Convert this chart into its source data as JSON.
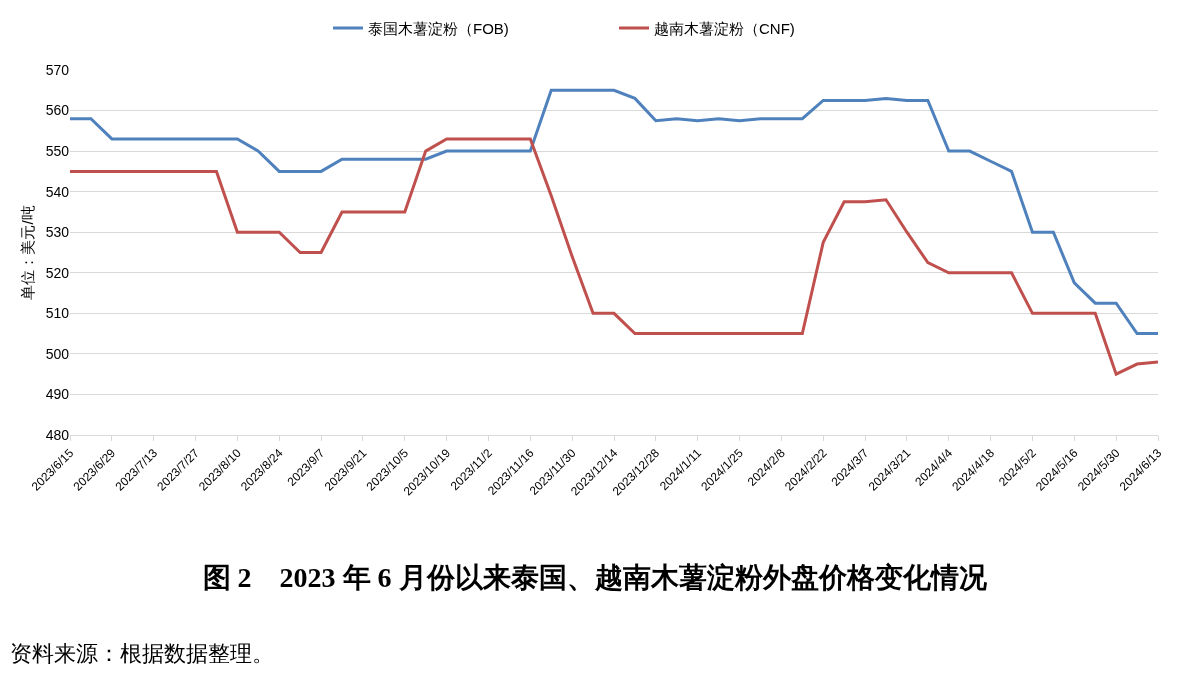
{
  "chart_data": {
    "type": "line",
    "title": "图 2　2023 年 6 月份以来泰国、越南木薯淀粉外盘价格变化情况",
    "ylabel": "单位：美元/吨",
    "annotations": [
      "资料来源：根据数据整理。"
    ],
    "categories": [
      "2023/6/15",
      null,
      "2023/6/29",
      null,
      "2023/7/13",
      null,
      "2023/7/27",
      null,
      "2023/8/10",
      null,
      "2023/8/24",
      null,
      "2023/9/7",
      null,
      "2023/9/21",
      null,
      "2023/10/5",
      null,
      "2023/10/19",
      null,
      "2023/11/2",
      null,
      "2023/11/16",
      null,
      "2023/11/30",
      null,
      "2023/12/14",
      null,
      "2023/12/28",
      null,
      "2024/1/11",
      null,
      "2024/1/25",
      null,
      "2024/2/8",
      null,
      "2024/2/22",
      null,
      "2024/3/7",
      null,
      "2024/3/21",
      null,
      "2024/4/4",
      null,
      "2024/4/18",
      null,
      "2024/5/2",
      null,
      "2024/5/16",
      null,
      "2024/5/30",
      null,
      "2024/6/13"
    ],
    "series": [
      {
        "name": "泰国木薯淀粉（FOB)",
        "color": "#4f81bd",
        "values": [
          558,
          558,
          553,
          553,
          553,
          553,
          553,
          553,
          553,
          550,
          545,
          545,
          545,
          548,
          548,
          548,
          548,
          548,
          550,
          550,
          550,
          550,
          550,
          565,
          565,
          565,
          565,
          563,
          557.5,
          558,
          557.5,
          558,
          557.5,
          558,
          558,
          558,
          562.5,
          562.5,
          562.5,
          563,
          562.5,
          562.5,
          550,
          550,
          547.5,
          545,
          530,
          530,
          517.5,
          512.5,
          512.5,
          505,
          505
        ]
      },
      {
        "name": "越南木薯淀粉（CNF)",
        "color": "#c0504d",
        "values": [
          545,
          545,
          545,
          545,
          545,
          545,
          545,
          545,
          530,
          530,
          530,
          525,
          525,
          535,
          535,
          535,
          535,
          550,
          553,
          553,
          553,
          553,
          553,
          539,
          524,
          510,
          510,
          505,
          505,
          505,
          505,
          505,
          505,
          505,
          505,
          505,
          527.5,
          537.5,
          537.5,
          538,
          530,
          522.5,
          520,
          520,
          520,
          520,
          510,
          510,
          510,
          510,
          495,
          497.5,
          498
        ]
      }
    ],
    "ylim": [
      480,
      570
    ],
    "yticks": [
      480,
      490,
      500,
      510,
      520,
      530,
      540,
      550,
      560,
      570
    ],
    "grid": "y",
    "legend": "top"
  }
}
